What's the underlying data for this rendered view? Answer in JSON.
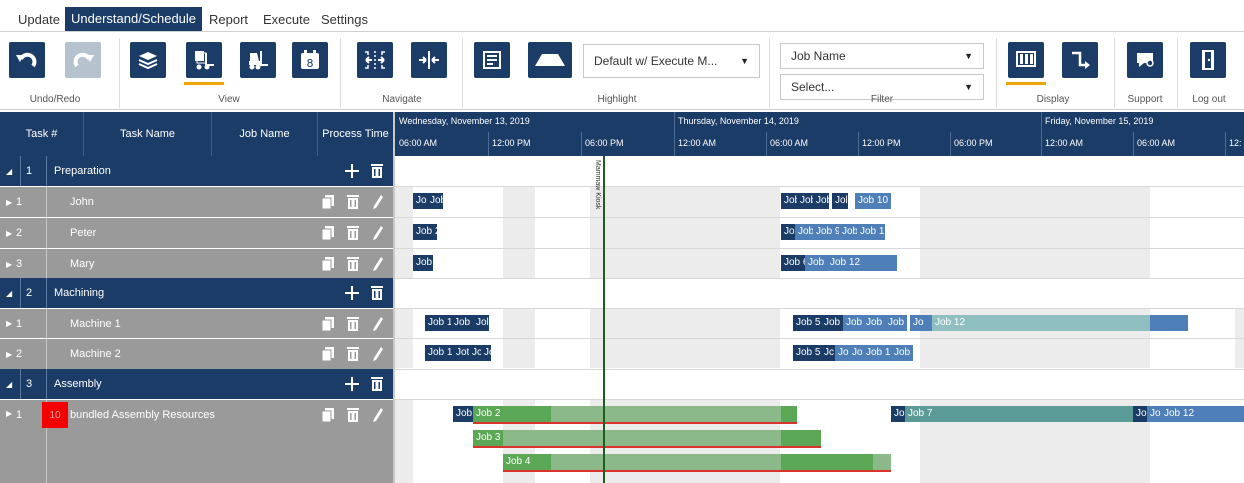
{
  "menu": [
    "Update",
    "Understand/Schedule",
    "Report",
    "Execute",
    "Settings"
  ],
  "ribbon": {
    "groups": {
      "undo_redo": "Undo/Redo",
      "view": "View",
      "navigate": "Navigate",
      "highlight": "Highlight",
      "filter": "Filter",
      "display": "Display",
      "support": "Support",
      "logout": "Log out"
    },
    "highlight_dropdown": "Default w/ Execute M...",
    "filter_field": "Job Name",
    "filter_value": "Select...",
    "view_icon_badge": "8"
  },
  "grid_headers": {
    "task_no": "Task #",
    "task_name": "Task Name",
    "job_name": "Job Name",
    "process_time": "Process Time"
  },
  "timeline": {
    "days": [
      "Wednesday, November 13, 2019",
      "Thursday, November 14, 2019",
      "Friday, November 15, 2019"
    ],
    "hours": [
      "06:00 AM",
      "12:00 PM",
      "06:00 PM",
      "12:00 AM",
      "06:00 AM",
      "12:00 PM",
      "06:00 PM",
      "12:00 AM",
      "06:00 AM",
      "12:"
    ],
    "now_label": "Mammaw Kiosk"
  },
  "rows": {
    "g1": {
      "no": "1",
      "name": "Preparation"
    },
    "r_john": {
      "no": "1",
      "name": "John"
    },
    "r_peter": {
      "no": "2",
      "name": "Peter"
    },
    "r_mary": {
      "no": "3",
      "name": "Mary"
    },
    "g2": {
      "no": "2",
      "name": "Machining"
    },
    "r_m1": {
      "no": "1",
      "name": "Machine 1"
    },
    "r_m2": {
      "no": "2",
      "name": "Machine 2"
    },
    "g3": {
      "no": "3",
      "name": "Assembly"
    },
    "r_asm": {
      "no": "1",
      "name": "bundled Assembly Resources",
      "badge": "10"
    }
  },
  "bars": {
    "john": [
      "Jol",
      "Job",
      "Job",
      "Job",
      "Job",
      "Jol",
      "Job 10"
    ],
    "peter": [
      "Job 2",
      "Jo",
      "Job",
      "Job 9",
      "Job",
      "Job 12"
    ],
    "mary": [
      "Job",
      "Job 6",
      "Job",
      "Job 12"
    ],
    "m1": [
      "Job 1",
      "Job 2",
      "Jol",
      "Job 5",
      "Job 6",
      "Job",
      "Job 9",
      "Job",
      "Jo",
      "Job 12"
    ],
    "m2": [
      "Job 1",
      "Jot",
      "Jc",
      "Jol",
      "Job 5",
      "Jc",
      "Jol",
      "Jol",
      "Job 10",
      "Job 1"
    ],
    "asm_top": [
      "Job",
      "Job 2",
      "Jo",
      "Job 7",
      "Jol",
      "Jol",
      "Job 12"
    ],
    "asm_mid": "Job 3",
    "asm_bot": "Job 4"
  },
  "colors": {
    "navy": "#1b3c66",
    "accent": "#f0a500",
    "bar_blue": "#4f7fb8",
    "bar_green": "#5aa855",
    "now_line": "#1f5c1f",
    "critical": "#d9342b"
  }
}
